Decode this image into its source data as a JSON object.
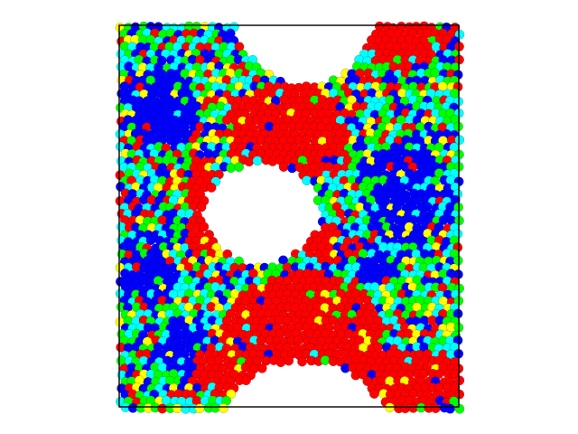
{
  "visualization": {
    "kind": "particle-simulation-snapshot",
    "color_scale": [
      "#0000ff",
      "#00ffff",
      "#00ff00",
      "#ffff00",
      "#ff0000"
    ],
    "background": "#ffffff",
    "box_color": "#000000",
    "features": {
      "top-notch": true,
      "bottom-notch": true,
      "central-void": true,
      "red-bridge-regions": true
    }
  }
}
